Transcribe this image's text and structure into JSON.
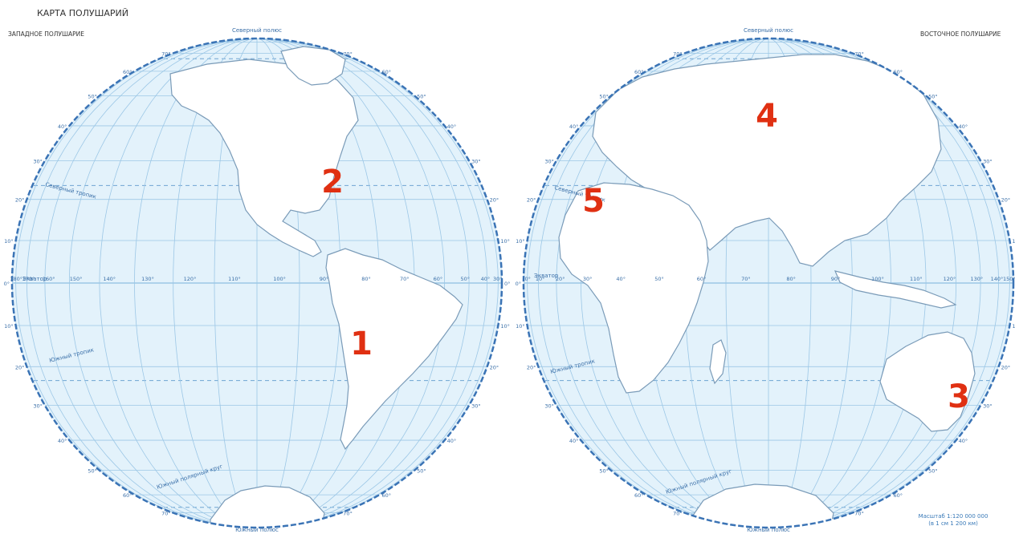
{
  "title": "КАРТА ПОЛУШАРИЙ",
  "west": {
    "label": "ЗАПАДНОЕ ПОЛУШАРИЕ",
    "north_pole": "Северный полюс",
    "south_pole": "Южный полюс",
    "equator": "Экватор",
    "tropic_n": "Северный тропик",
    "tropic_s": "Южный тропик",
    "polar_circle": "Южный полярный круг",
    "lon_labels": [
      "180°",
      "170°",
      "160°",
      "150°",
      "140°",
      "130°",
      "120°",
      "110°",
      "100°",
      "90°",
      "80°",
      "70°",
      "60°",
      "50°",
      "40°",
      "30°"
    ],
    "lat_labels": [
      "70°",
      "60°",
      "50°",
      "40°",
      "30°",
      "20°",
      "10°",
      "0°",
      "10°",
      "20°",
      "30°",
      "40°",
      "50°",
      "60°",
      "70°"
    ]
  },
  "east": {
    "label": "ВОСТОЧНОЕ ПОЛУШАРИЕ",
    "north_pole": "Северный полюс",
    "south_pole": "Южный полюс",
    "equator": "Экватор",
    "tropic_n": "Северный тропик",
    "tropic_s": "Южный тропик",
    "polar_circle": "Южный полярный круг",
    "lon_labels": [
      "0°",
      "10°",
      "20°",
      "30°",
      "40°",
      "50°",
      "60°",
      "70°",
      "80°",
      "90°",
      "100°",
      "110°",
      "120°",
      "130°",
      "140°",
      "150°"
    ],
    "lat_labels": [
      "70°",
      "60°",
      "50°",
      "40°",
      "30°",
      "20°",
      "10°",
      "0°",
      "10°",
      "20°",
      "30°",
      "40°",
      "50°",
      "60°",
      "70°"
    ]
  },
  "markers": [
    {
      "label": "1",
      "place": "South America"
    },
    {
      "label": "2",
      "place": "North America"
    },
    {
      "label": "3",
      "place": "Australia"
    },
    {
      "label": "4",
      "place": "Eurasia"
    },
    {
      "label": "5",
      "place": "Africa"
    }
  ],
  "scale": {
    "line1": "Масштаб 1:120 000 000",
    "line2": "(в 1 см 1 200 км)"
  },
  "colors": {
    "ocean": "#e3f2fb",
    "grid": "#9cc7e6",
    "rim": "#3a73b5",
    "land": "#ffffff",
    "coast": "#7a9bb8",
    "marker": "#e03012"
  }
}
